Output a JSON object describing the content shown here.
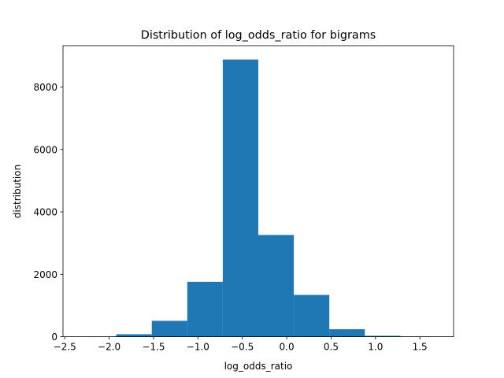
{
  "chart_data": {
    "type": "bar",
    "title": "Distribution of log_odds_ratio for bigrams",
    "xlabel": "log_odds_ratio",
    "ylabel": "distribution",
    "bins": [
      {
        "x0": -2.32,
        "x1": -1.92,
        "value": 5
      },
      {
        "x0": -1.92,
        "x1": -1.52,
        "value": 80
      },
      {
        "x0": -1.52,
        "x1": -1.12,
        "value": 510
      },
      {
        "x0": -1.12,
        "x1": -0.72,
        "value": 1760
      },
      {
        "x0": -0.72,
        "x1": -0.32,
        "value": 8880
      },
      {
        "x0": -0.32,
        "x1": 0.08,
        "value": 3260
      },
      {
        "x0": 0.08,
        "x1": 0.48,
        "value": 1340
      },
      {
        "x0": 0.48,
        "x1": 0.88,
        "value": 240
      },
      {
        "x0": 0.88,
        "x1": 1.28,
        "value": 30
      },
      {
        "x0": 1.28,
        "x1": 1.68,
        "value": 5
      }
    ],
    "xlim": [
      -2.52,
      1.88
    ],
    "ylim": [
      0,
      9324
    ],
    "xticks": [
      -2.5,
      -2.0,
      -1.5,
      -1.0,
      -0.5,
      0.0,
      0.5,
      1.0,
      1.5
    ],
    "xtick_labels": [
      "−2.5",
      "−2.0",
      "−1.5",
      "−1.0",
      "−0.5",
      "0.0",
      "0.5",
      "1.0",
      "1.5"
    ],
    "yticks": [
      0,
      2000,
      4000,
      6000,
      8000
    ],
    "ytick_labels": [
      "0",
      "2000",
      "4000",
      "6000",
      "8000"
    ],
    "grid": false,
    "bar_color": "#1f77b4"
  }
}
